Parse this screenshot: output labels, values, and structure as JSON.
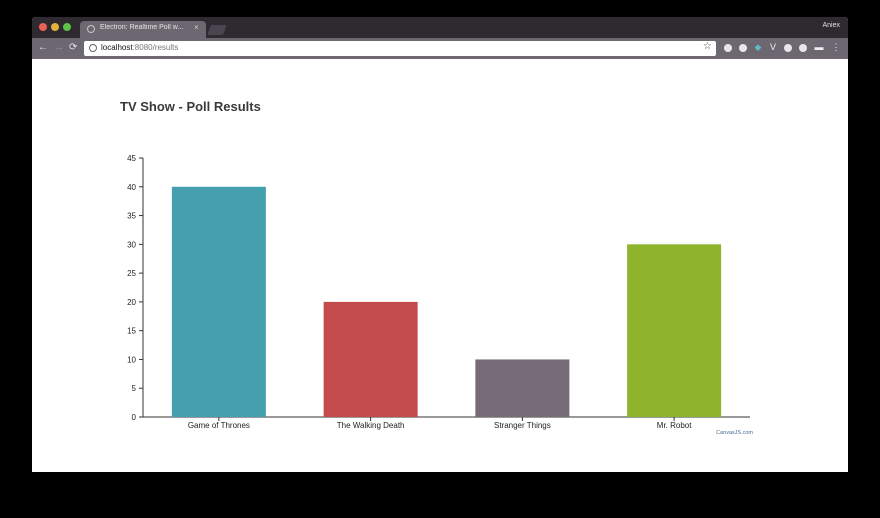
{
  "browser": {
    "tab_title": "Electron: Realtime Poll w...",
    "tab_close": "×",
    "user_name": "Aniex",
    "url_host": "localhost",
    "url_rest": ":8080/results",
    "nav_back": "←",
    "nav_forward": "→",
    "nav_reload": "⟳",
    "bookmark_star": "☆",
    "menu": "⋮"
  },
  "colors": {
    "game_of_thrones": "#45a0ae",
    "the_walking_death": "#c34b4b",
    "stranger_things": "#776b78",
    "mr_robot": "#8db42a"
  },
  "chart_data": {
    "type": "bar",
    "title": "TV Show - Poll Results",
    "categories": [
      "Game of Thrones",
      "The Walking Death",
      "Stranger Things",
      "Mr. Robot"
    ],
    "values": [
      40,
      20,
      10,
      30
    ],
    "ylim": [
      0,
      45
    ],
    "yticks": [
      0,
      5,
      10,
      15,
      20,
      25,
      30,
      35,
      40,
      45
    ],
    "xlabel": "",
    "ylabel": "",
    "grid": false,
    "credit": "CanvasJS.com"
  }
}
